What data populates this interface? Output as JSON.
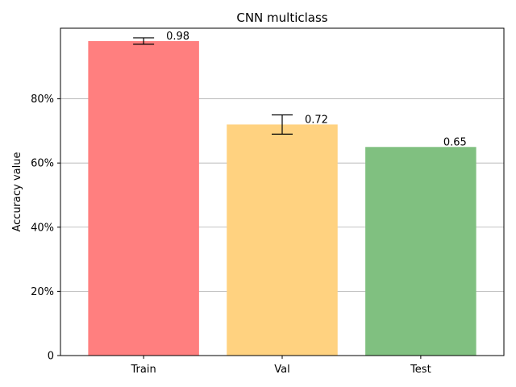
{
  "chart_data": {
    "type": "bar",
    "title": "CNN multiclass",
    "xlabel": "",
    "ylabel": "Accuracy value",
    "categories": [
      "Train",
      "Val",
      "Test"
    ],
    "values": [
      0.98,
      0.72,
      0.65
    ],
    "value_labels": [
      "0.98",
      "0.72",
      "0.65"
    ],
    "error_bars": [
      {
        "low": 0.97,
        "high": 0.99
      },
      {
        "low": 0.69,
        "high": 0.75
      },
      null
    ],
    "colors": [
      "#ff7f7f",
      "#ffd280",
      "#80c080"
    ],
    "ylim": [
      0,
      1.02
    ],
    "yticks": [
      0,
      0.2,
      0.4,
      0.6,
      0.8
    ],
    "ytick_labels": [
      "0",
      "20%",
      "40%",
      "60%",
      "80%"
    ],
    "grid": "y"
  }
}
